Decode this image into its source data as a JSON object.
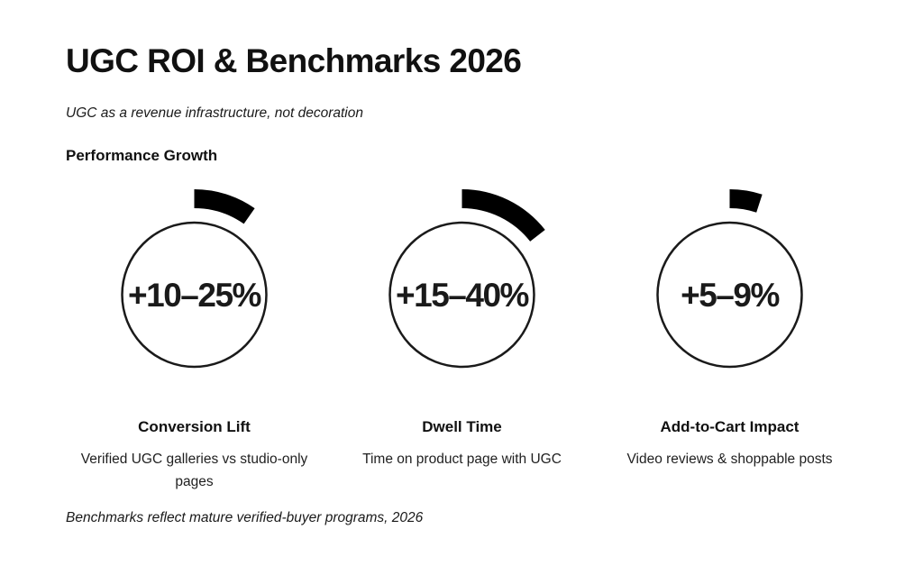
{
  "page": {
    "title": "UGC ROI & Benchmarks 2026",
    "subtitle": "UGC as a revenue infrastructure, not decoration",
    "section_heading": "Performance Growth",
    "footnote": "Benchmarks reflect mature verified-buyer programs, 2026"
  },
  "colors": {
    "background": "#ffffff",
    "ink": "#111111",
    "arc_fill": "#000000",
    "circle_stroke": "#1a1a1a"
  },
  "chart_data": {
    "type": "gauge",
    "title": "Performance Growth",
    "unit": "percent uplift",
    "legend_position": "none",
    "grid": false,
    "gauges": [
      {
        "metric": "Conversion Lift",
        "value_label": "+10–25%",
        "range_low_pct": 10,
        "range_high_pct": 25,
        "arc_start_deg": 0,
        "arc_end_deg": 35,
        "description": "Verified UGC galleries vs studio-only pages"
      },
      {
        "metric": "Dwell Time",
        "value_label": "+15–40%",
        "range_low_pct": 15,
        "range_high_pct": 40,
        "arc_start_deg": 0,
        "arc_end_deg": 52,
        "description": "Time on product page with UGC"
      },
      {
        "metric": "Add-to-Cart Impact",
        "value_label": "+5–9%",
        "range_low_pct": 5,
        "range_high_pct": 9,
        "arc_start_deg": 0,
        "arc_end_deg": 18,
        "description": "Video reviews & shoppable posts"
      }
    ]
  }
}
